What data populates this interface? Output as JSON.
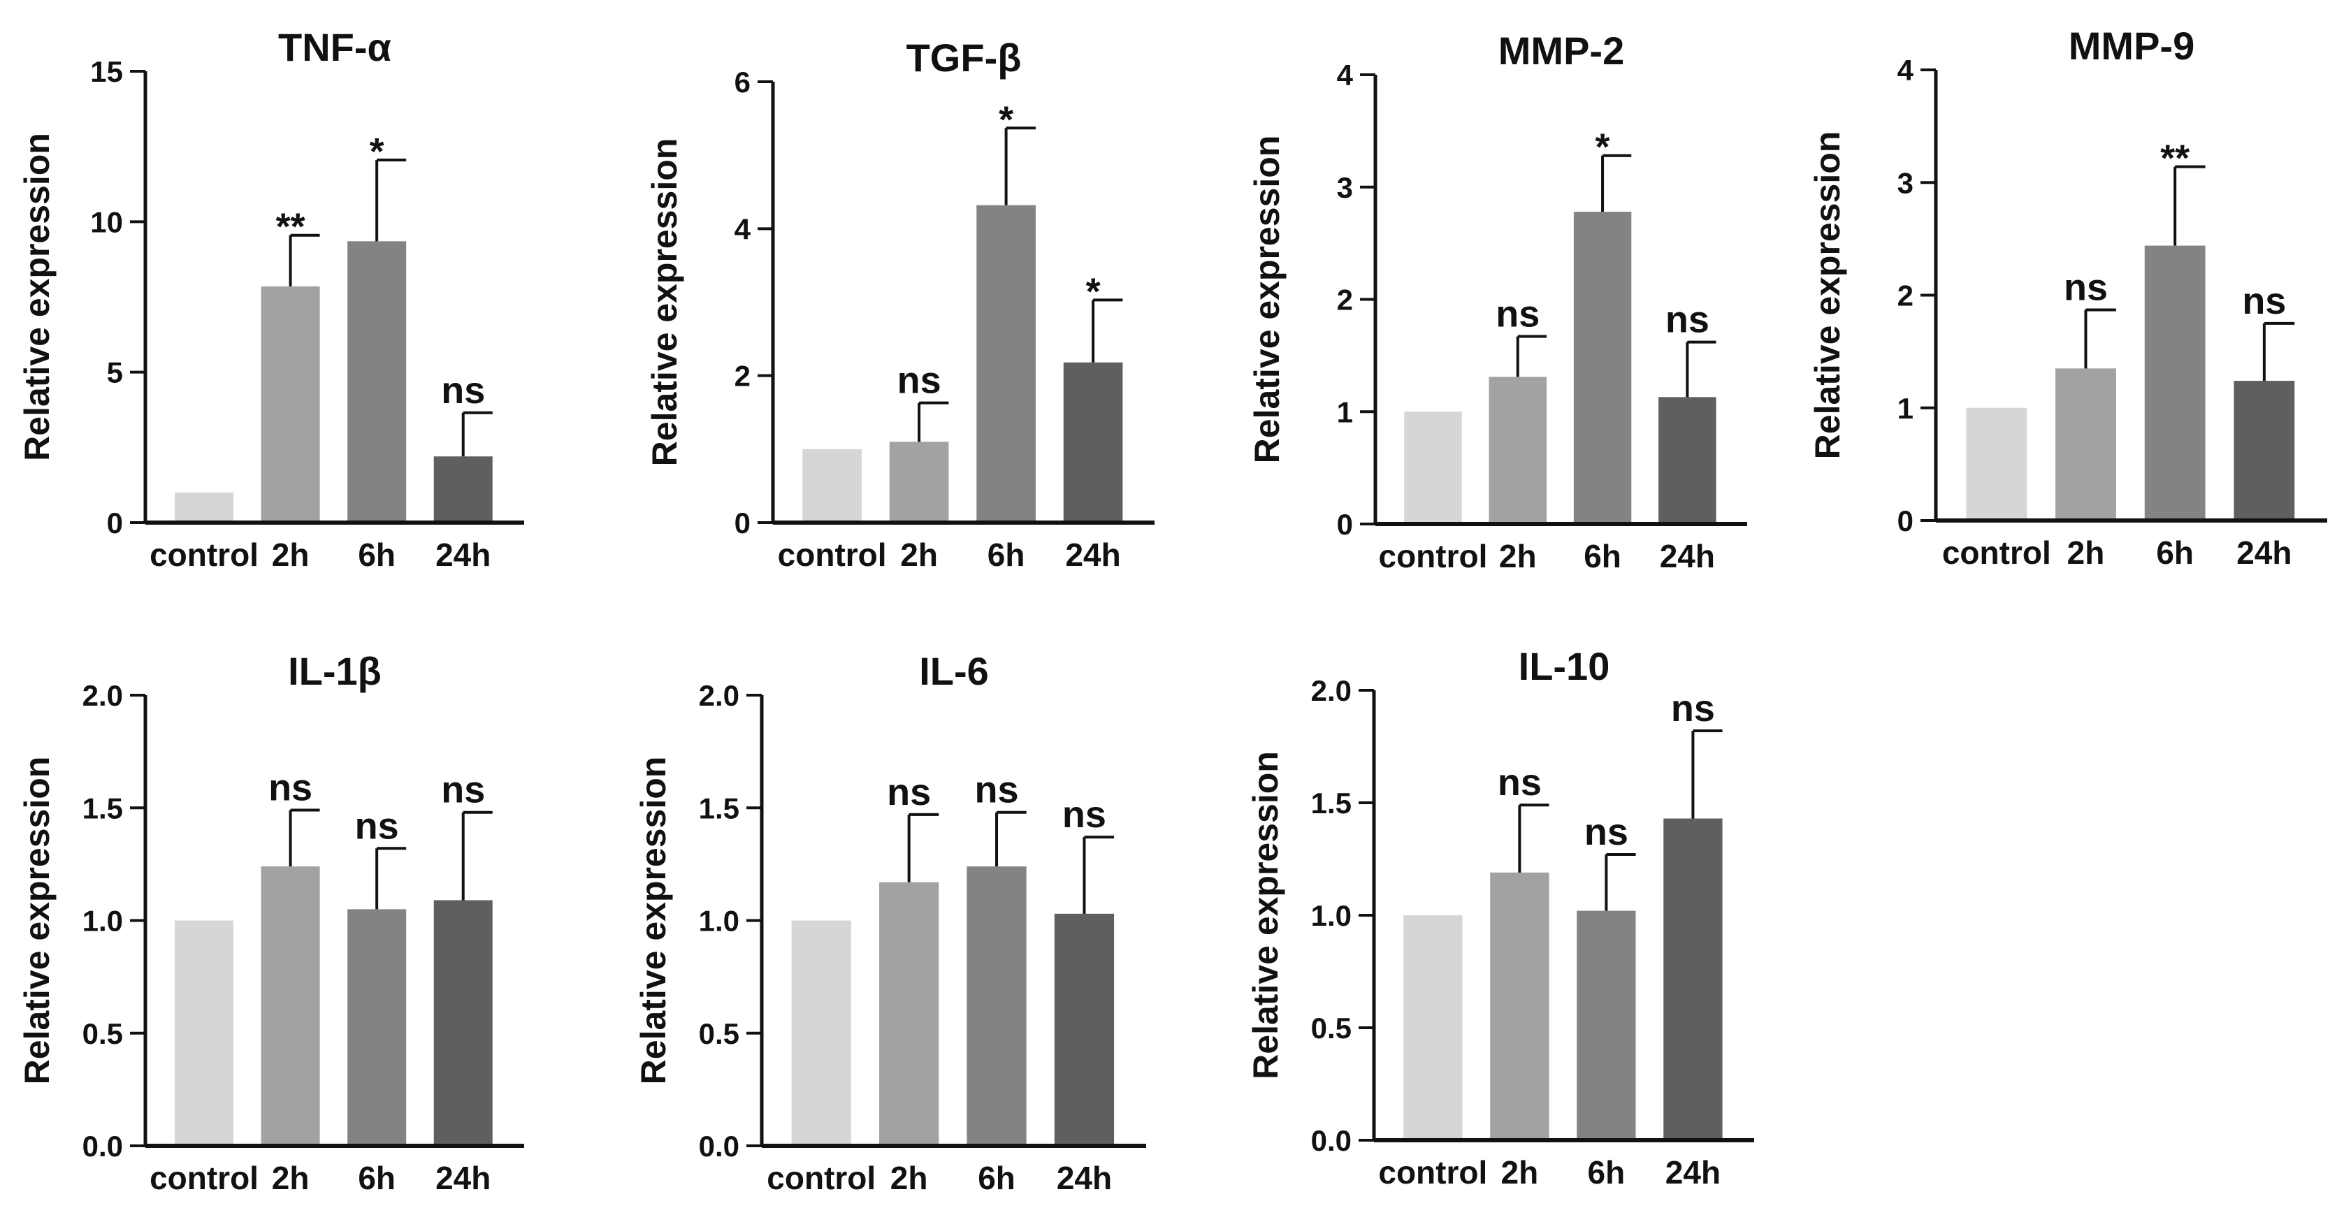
{
  "chart_data": [
    {
      "type": "bar",
      "title": "TNF-α",
      "ylabel": "Relative expression",
      "xlabel": "",
      "categories": [
        "control",
        "2h",
        "6h",
        "24h"
      ],
      "values": [
        1.0,
        7.85,
        9.35,
        2.2
      ],
      "errors": [
        0.0,
        1.7,
        2.7,
        1.45
      ],
      "significance": [
        "",
        "**",
        "*",
        "ns"
      ],
      "ylim": [
        0,
        15
      ],
      "yticks": [
        0,
        5,
        10,
        15
      ],
      "ytick_labels": [
        "0",
        "5",
        "10",
        "15"
      ]
    },
    {
      "type": "bar",
      "title": "TGF-β",
      "ylabel": "Relative expression",
      "xlabel": "",
      "categories": [
        "control",
        "2h",
        "6h",
        "24h"
      ],
      "values": [
        1.0,
        1.1,
        4.32,
        2.18
      ],
      "errors": [
        0.0,
        0.53,
        1.05,
        0.85
      ],
      "significance": [
        "",
        "ns",
        "*",
        "*"
      ],
      "ylim": [
        0,
        6
      ],
      "yticks": [
        0,
        2,
        4,
        6
      ],
      "ytick_labels": [
        "0",
        "2",
        "4",
        "6"
      ]
    },
    {
      "type": "bar",
      "title": "MMP-2",
      "ylabel": "Relative expression",
      "xlabel": "",
      "categories": [
        "control",
        "2h",
        "6h",
        "24h"
      ],
      "values": [
        1.0,
        1.31,
        2.78,
        1.13
      ],
      "errors": [
        0.0,
        0.36,
        0.5,
        0.49
      ],
      "significance": [
        "",
        "ns",
        "*",
        "ns"
      ],
      "ylim": [
        0,
        4
      ],
      "yticks": [
        0,
        1,
        2,
        3,
        4
      ],
      "ytick_labels": [
        "0",
        "1",
        "2",
        "3",
        "4"
      ]
    },
    {
      "type": "bar",
      "title": "MMP-9",
      "ylabel": "Relative expression",
      "xlabel": "",
      "categories": [
        "control",
        "2h",
        "6h",
        "24h"
      ],
      "values": [
        1.0,
        1.35,
        2.44,
        1.24
      ],
      "errors": [
        0.0,
        0.52,
        0.7,
        0.51
      ],
      "significance": [
        "",
        "ns",
        "**",
        "ns"
      ],
      "ylim": [
        0,
        4
      ],
      "yticks": [
        0,
        1,
        2,
        3,
        4
      ],
      "ytick_labels": [
        "0",
        "1",
        "2",
        "3",
        "4"
      ]
    },
    {
      "type": "bar",
      "title": "IL-1β",
      "ylabel": "Relative expression",
      "xlabel": "",
      "categories": [
        "control",
        "2h",
        "6h",
        "24h"
      ],
      "values": [
        1.0,
        1.24,
        1.05,
        1.09
      ],
      "errors": [
        0.0,
        0.25,
        0.27,
        0.39
      ],
      "significance": [
        "",
        "ns",
        "ns",
        "ns"
      ],
      "ylim": [
        0,
        2.0
      ],
      "yticks": [
        0,
        0.5,
        1.0,
        1.5,
        2.0
      ],
      "ytick_labels": [
        "0.0",
        "0.5",
        "1.0",
        "1.5",
        "2.0"
      ]
    },
    {
      "type": "bar",
      "title": "IL-6",
      "ylabel": "Relative expression",
      "xlabel": "",
      "categories": [
        "control",
        "2h",
        "6h",
        "24h"
      ],
      "values": [
        1.0,
        1.17,
        1.24,
        1.03
      ],
      "errors": [
        0.0,
        0.3,
        0.24,
        0.34
      ],
      "significance": [
        "",
        "ns",
        "ns",
        "ns"
      ],
      "ylim": [
        0,
        2.0
      ],
      "yticks": [
        0,
        0.5,
        1.0,
        1.5,
        2.0
      ],
      "ytick_labels": [
        "0.0",
        "0.5",
        "1.0",
        "1.5",
        "2.0"
      ]
    },
    {
      "type": "bar",
      "title": "IL-10",
      "ylabel": "Relative expression",
      "xlabel": "",
      "categories": [
        "control",
        "2h",
        "6h",
        "24h"
      ],
      "values": [
        1.0,
        1.19,
        1.02,
        1.43
      ],
      "errors": [
        0.0,
        0.3,
        0.25,
        0.39
      ],
      "significance": [
        "",
        "ns",
        "ns",
        "ns"
      ],
      "ylim": [
        0,
        2.0
      ],
      "yticks": [
        0,
        0.5,
        1.0,
        1.5,
        2.0
      ],
      "ytick_labels": [
        "0.0",
        "0.5",
        "1.0",
        "1.5",
        "2.0"
      ]
    }
  ],
  "colors": {
    "bars": [
      "#d6d6d6",
      "#a2a2a2",
      "#838383",
      "#5f5f5f"
    ],
    "axis": "#111111",
    "text": "#111111"
  }
}
